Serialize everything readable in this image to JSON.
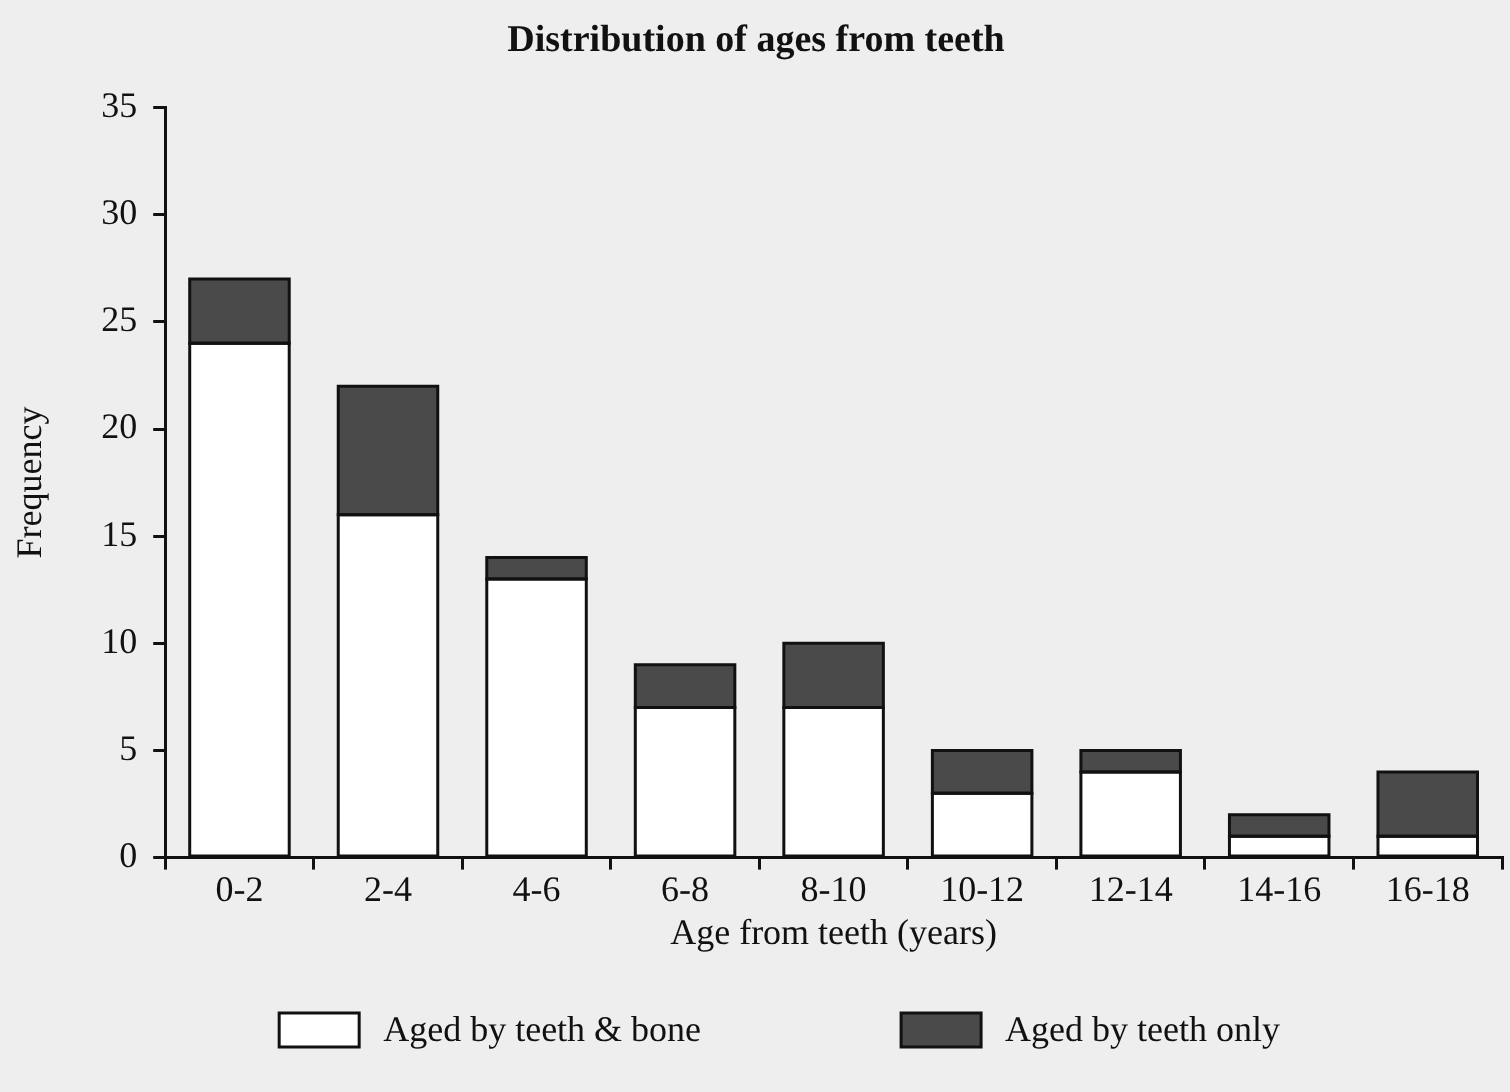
{
  "chart_data": {
    "type": "bar",
    "title": "Distribution of ages from teeth",
    "xlabel": "Age from teeth (years)",
    "ylabel": "Frequency",
    "categories": [
      "0-2",
      "2-4",
      "4-6",
      "6-8",
      "8-10",
      "10-12",
      "12-14",
      "14-16",
      "16-18"
    ],
    "series": [
      {
        "name": "Aged by teeth & bone",
        "color": "#ffffff",
        "values": [
          24,
          16,
          13,
          7,
          7,
          3,
          4,
          1,
          1
        ]
      },
      {
        "name": "Aged by teeth only",
        "color": "#4a4a4a",
        "values": [
          3,
          6,
          1,
          2,
          3,
          2,
          1,
          1,
          3
        ]
      }
    ],
    "stacked": true,
    "ylim": [
      0,
      35
    ],
    "yticks": [
      0,
      5,
      10,
      15,
      20,
      25,
      30,
      35
    ],
    "legend": "bottom"
  }
}
